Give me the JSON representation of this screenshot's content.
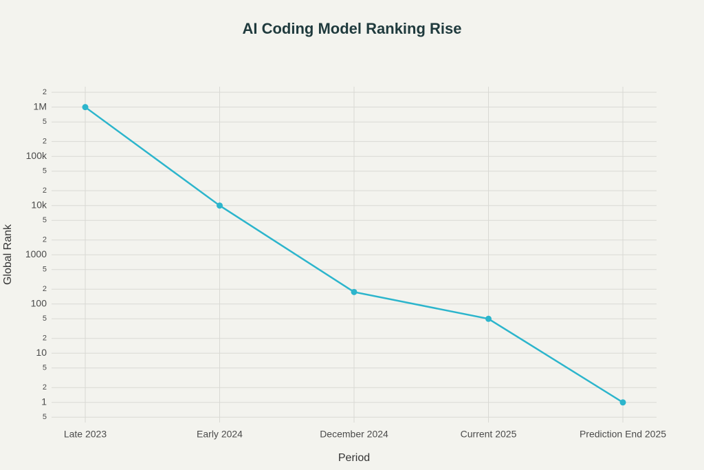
{
  "chart_data": {
    "type": "line",
    "title": "AI Coding Model Ranking Rise",
    "x_label": "Period",
    "y_label": "Global Rank",
    "categories": [
      "Late 2023",
      "Early 2024",
      "December 2024",
      "Current 2025",
      "Prediction End 2025"
    ],
    "series": [
      {
        "name": "Global Rank",
        "color": "#2cb5cc",
        "values": [
          1000000,
          10000,
          175,
          50,
          1
        ]
      }
    ],
    "y_log": true,
    "grid": true,
    "ylim": [
      0.39,
      2600000
    ],
    "yticks": [
      {
        "value": 0.5,
        "label": "5"
      },
      1,
      2,
      5,
      10,
      {
        "value": 20,
        "label": "2"
      },
      {
        "value": 50,
        "label": "5"
      },
      100,
      {
        "value": 200,
        "label": "2"
      },
      {
        "value": 500,
        "label": "5"
      },
      1000,
      {
        "value": 2000,
        "label": "2"
      },
      {
        "value": 5000,
        "label": "5"
      },
      {
        "value": 10000,
        "label": "10k"
      },
      {
        "value": 20000,
        "label": "2"
      },
      {
        "value": 50000,
        "label": "5"
      },
      {
        "value": 100000,
        "label": "100k"
      },
      {
        "value": 200000,
        "label": "2"
      },
      {
        "value": 500000,
        "label": "5"
      },
      {
        "value": 1000000,
        "label": "1M"
      },
      {
        "value": 2000000,
        "label": "2"
      }
    ]
  }
}
